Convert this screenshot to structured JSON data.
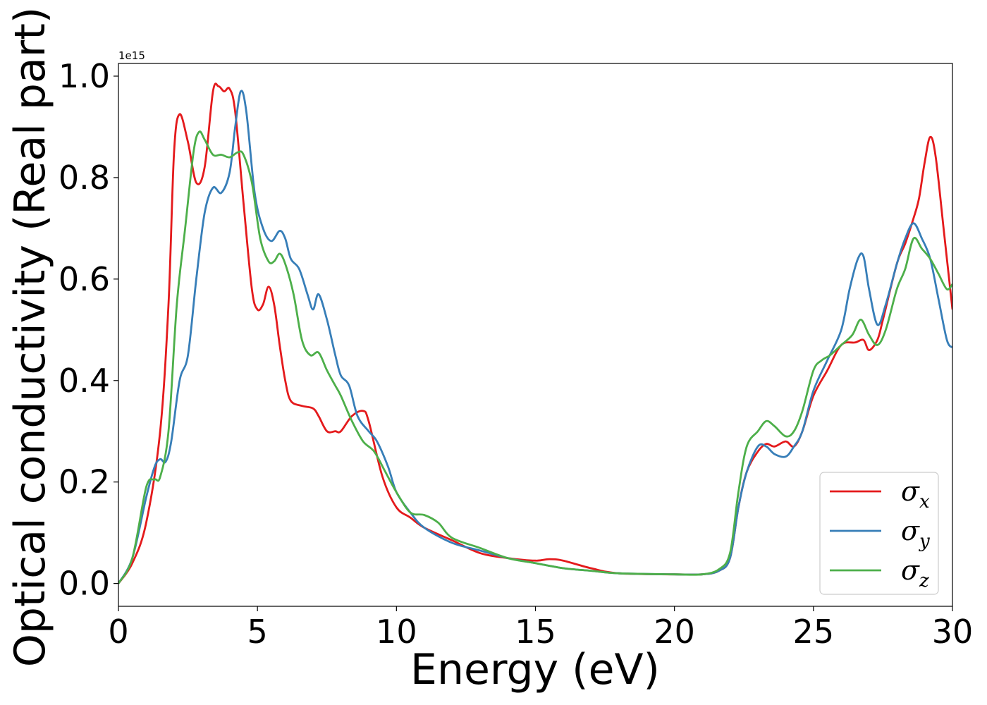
{
  "chart_data": {
    "type": "line",
    "xlabel": "Energy (eV)",
    "ylabel": "Optical conductivity (Real part)",
    "y_offset_label": "1e15",
    "xlim": [
      0,
      30
    ],
    "ylim": [
      -0.045,
      1.025
    ],
    "x_ticks": [
      0,
      5,
      10,
      15,
      20,
      25,
      30
    ],
    "x_tick_labels": [
      "0",
      "5",
      "10",
      "15",
      "20",
      "25",
      "30"
    ],
    "y_ticks": [
      0.0,
      0.2,
      0.4,
      0.6,
      0.8,
      1.0
    ],
    "y_tick_labels": [
      "0.0",
      "0.2",
      "0.4",
      "0.6",
      "0.8",
      "1.0"
    ],
    "grid": false,
    "legend_position": "lower-right",
    "series": [
      {
        "name": "σx",
        "symbol": "σ",
        "subscript": "x",
        "color": "#e41a1c",
        "points": [
          [
            0,
            0
          ],
          [
            0.5,
            0.04
          ],
          [
            1.0,
            0.12
          ],
          [
            1.5,
            0.3
          ],
          [
            1.8,
            0.55
          ],
          [
            2.0,
            0.85
          ],
          [
            2.2,
            0.925
          ],
          [
            2.5,
            0.87
          ],
          [
            2.8,
            0.79
          ],
          [
            3.1,
            0.82
          ],
          [
            3.4,
            0.97
          ],
          [
            3.6,
            0.98
          ],
          [
            3.8,
            0.97
          ],
          [
            4.0,
            0.975
          ],
          [
            4.2,
            0.93
          ],
          [
            4.5,
            0.75
          ],
          [
            4.8,
            0.58
          ],
          [
            5.0,
            0.54
          ],
          [
            5.2,
            0.55
          ],
          [
            5.4,
            0.585
          ],
          [
            5.6,
            0.55
          ],
          [
            5.8,
            0.47
          ],
          [
            6.0,
            0.4
          ],
          [
            6.2,
            0.36
          ],
          [
            6.6,
            0.35
          ],
          [
            7.0,
            0.345
          ],
          [
            7.2,
            0.33
          ],
          [
            7.5,
            0.3
          ],
          [
            7.8,
            0.3
          ],
          [
            8.0,
            0.3
          ],
          [
            8.4,
            0.33
          ],
          [
            8.8,
            0.34
          ],
          [
            9.0,
            0.32
          ],
          [
            9.5,
            0.21
          ],
          [
            10.0,
            0.15
          ],
          [
            10.5,
            0.13
          ],
          [
            11.0,
            0.11
          ],
          [
            12.0,
            0.085
          ],
          [
            13.0,
            0.06
          ],
          [
            14.0,
            0.05
          ],
          [
            15.0,
            0.045
          ],
          [
            15.5,
            0.048
          ],
          [
            16.0,
            0.045
          ],
          [
            17.0,
            0.03
          ],
          [
            18.0,
            0.02
          ],
          [
            20.0,
            0.018
          ],
          [
            21.0,
            0.018
          ],
          [
            21.6,
            0.025
          ],
          [
            22.0,
            0.05
          ],
          [
            22.3,
            0.15
          ],
          [
            22.6,
            0.22
          ],
          [
            23.0,
            0.26
          ],
          [
            23.3,
            0.275
          ],
          [
            23.6,
            0.27
          ],
          [
            24.0,
            0.28
          ],
          [
            24.3,
            0.27
          ],
          [
            24.6,
            0.3
          ],
          [
            25.0,
            0.37
          ],
          [
            25.5,
            0.42
          ],
          [
            26.0,
            0.47
          ],
          [
            26.5,
            0.475
          ],
          [
            26.8,
            0.48
          ],
          [
            27.0,
            0.46
          ],
          [
            27.3,
            0.48
          ],
          [
            27.5,
            0.52
          ],
          [
            28.0,
            0.63
          ],
          [
            28.3,
            0.67
          ],
          [
            28.6,
            0.72
          ],
          [
            28.8,
            0.76
          ],
          [
            29.0,
            0.83
          ],
          [
            29.2,
            0.88
          ],
          [
            29.4,
            0.84
          ],
          [
            29.7,
            0.69
          ],
          [
            30.0,
            0.54
          ]
        ]
      },
      {
        "name": "σy",
        "symbol": "σ",
        "subscript": "y",
        "color": "#377eb8",
        "points": [
          [
            0,
            0
          ],
          [
            0.5,
            0.05
          ],
          [
            1.0,
            0.17
          ],
          [
            1.3,
            0.23
          ],
          [
            1.5,
            0.245
          ],
          [
            1.7,
            0.24
          ],
          [
            1.9,
            0.28
          ],
          [
            2.2,
            0.4
          ],
          [
            2.5,
            0.45
          ],
          [
            2.8,
            0.6
          ],
          [
            3.1,
            0.73
          ],
          [
            3.4,
            0.78
          ],
          [
            3.7,
            0.77
          ],
          [
            4.0,
            0.81
          ],
          [
            4.2,
            0.9
          ],
          [
            4.4,
            0.97
          ],
          [
            4.6,
            0.93
          ],
          [
            4.9,
            0.77
          ],
          [
            5.2,
            0.7
          ],
          [
            5.5,
            0.675
          ],
          [
            5.8,
            0.695
          ],
          [
            6.0,
            0.68
          ],
          [
            6.2,
            0.64
          ],
          [
            6.5,
            0.62
          ],
          [
            6.8,
            0.57
          ],
          [
            7.0,
            0.54
          ],
          [
            7.2,
            0.57
          ],
          [
            7.5,
            0.52
          ],
          [
            7.8,
            0.45
          ],
          [
            8.0,
            0.41
          ],
          [
            8.3,
            0.39
          ],
          [
            8.6,
            0.33
          ],
          [
            9.0,
            0.3
          ],
          [
            9.3,
            0.28
          ],
          [
            9.7,
            0.23
          ],
          [
            10.0,
            0.18
          ],
          [
            10.5,
            0.14
          ],
          [
            11.0,
            0.11
          ],
          [
            12.0,
            0.08
          ],
          [
            13.0,
            0.065
          ],
          [
            14.0,
            0.05
          ],
          [
            15.0,
            0.04
          ],
          [
            16.0,
            0.03
          ],
          [
            17.0,
            0.025
          ],
          [
            18.0,
            0.02
          ],
          [
            20.0,
            0.018
          ],
          [
            21.0,
            0.018
          ],
          [
            21.6,
            0.025
          ],
          [
            22.0,
            0.05
          ],
          [
            22.3,
            0.15
          ],
          [
            22.6,
            0.22
          ],
          [
            23.0,
            0.27
          ],
          [
            23.3,
            0.27
          ],
          [
            23.6,
            0.255
          ],
          [
            24.0,
            0.25
          ],
          [
            24.3,
            0.27
          ],
          [
            24.6,
            0.3
          ],
          [
            25.0,
            0.38
          ],
          [
            25.5,
            0.44
          ],
          [
            26.0,
            0.5
          ],
          [
            26.3,
            0.58
          ],
          [
            26.6,
            0.64
          ],
          [
            26.8,
            0.645
          ],
          [
            27.0,
            0.58
          ],
          [
            27.3,
            0.51
          ],
          [
            27.6,
            0.55
          ],
          [
            28.0,
            0.63
          ],
          [
            28.3,
            0.68
          ],
          [
            28.6,
            0.71
          ],
          [
            28.9,
            0.68
          ],
          [
            29.2,
            0.64
          ],
          [
            29.5,
            0.56
          ],
          [
            29.8,
            0.48
          ],
          [
            30.0,
            0.465
          ]
        ]
      },
      {
        "name": "σz",
        "symbol": "σ",
        "subscript": "z",
        "color": "#4daf4a",
        "points": [
          [
            0,
            0
          ],
          [
            0.5,
            0.05
          ],
          [
            1.0,
            0.19
          ],
          [
            1.3,
            0.205
          ],
          [
            1.5,
            0.21
          ],
          [
            1.8,
            0.3
          ],
          [
            2.1,
            0.55
          ],
          [
            2.4,
            0.7
          ],
          [
            2.7,
            0.85
          ],
          [
            2.9,
            0.89
          ],
          [
            3.1,
            0.875
          ],
          [
            3.4,
            0.845
          ],
          [
            3.7,
            0.845
          ],
          [
            4.0,
            0.84
          ],
          [
            4.3,
            0.85
          ],
          [
            4.5,
            0.845
          ],
          [
            4.8,
            0.79
          ],
          [
            5.1,
            0.68
          ],
          [
            5.4,
            0.635
          ],
          [
            5.6,
            0.635
          ],
          [
            5.8,
            0.65
          ],
          [
            6.0,
            0.63
          ],
          [
            6.3,
            0.57
          ],
          [
            6.6,
            0.48
          ],
          [
            6.9,
            0.45
          ],
          [
            7.2,
            0.455
          ],
          [
            7.5,
            0.42
          ],
          [
            7.8,
            0.39
          ],
          [
            8.0,
            0.37
          ],
          [
            8.4,
            0.32
          ],
          [
            8.8,
            0.28
          ],
          [
            9.2,
            0.26
          ],
          [
            9.6,
            0.22
          ],
          [
            10.0,
            0.18
          ],
          [
            10.5,
            0.14
          ],
          [
            11.0,
            0.135
          ],
          [
            11.5,
            0.12
          ],
          [
            12.0,
            0.09
          ],
          [
            13.0,
            0.07
          ],
          [
            14.0,
            0.05
          ],
          [
            15.0,
            0.04
          ],
          [
            16.0,
            0.03
          ],
          [
            17.0,
            0.025
          ],
          [
            18.0,
            0.02
          ],
          [
            20.0,
            0.018
          ],
          [
            21.0,
            0.018
          ],
          [
            21.6,
            0.028
          ],
          [
            22.0,
            0.06
          ],
          [
            22.3,
            0.18
          ],
          [
            22.6,
            0.27
          ],
          [
            23.0,
            0.3
          ],
          [
            23.3,
            0.32
          ],
          [
            23.6,
            0.31
          ],
          [
            24.0,
            0.29
          ],
          [
            24.3,
            0.3
          ],
          [
            24.6,
            0.34
          ],
          [
            25.0,
            0.42
          ],
          [
            25.3,
            0.44
          ],
          [
            25.6,
            0.45
          ],
          [
            26.0,
            0.47
          ],
          [
            26.4,
            0.49
          ],
          [
            26.7,
            0.52
          ],
          [
            27.0,
            0.49
          ],
          [
            27.3,
            0.47
          ],
          [
            27.6,
            0.5
          ],
          [
            28.0,
            0.58
          ],
          [
            28.3,
            0.62
          ],
          [
            28.6,
            0.68
          ],
          [
            28.9,
            0.66
          ],
          [
            29.2,
            0.64
          ],
          [
            29.5,
            0.61
          ],
          [
            29.8,
            0.58
          ],
          [
            30.0,
            0.59
          ]
        ]
      }
    ]
  }
}
